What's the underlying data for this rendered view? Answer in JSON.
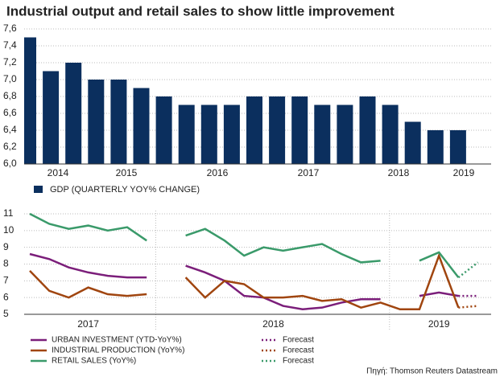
{
  "chart_data": [
    {
      "type": "bar",
      "title": "Industrial output and retail sales to show little improvement",
      "categories": [
        null,
        null,
        null,
        null,
        null,
        null,
        null,
        null,
        null,
        null,
        null,
        null,
        null,
        null,
        null,
        null,
        null,
        null,
        null,
        null
      ],
      "series": [
        {
          "name": "GDP (QUARTERLY YOY% CHANGE)",
          "color": "#0b2f5e",
          "values": [
            7.5,
            7.1,
            7.2,
            7.0,
            7.0,
            6.9,
            6.8,
            6.7,
            6.7,
            6.7,
            6.8,
            6.8,
            6.8,
            6.7,
            6.7,
            6.8,
            6.7,
            6.5,
            6.4,
            6.4
          ]
        }
      ],
      "year_labels": [
        "2014",
        "2015",
        "2016",
        "2017",
        "2018",
        "2019"
      ],
      "ylim": [
        6.0,
        7.6
      ],
      "yticks": [
        {
          "value": 6.0,
          "label": "6,0"
        },
        {
          "value": 6.2,
          "label": "6,2"
        },
        {
          "value": 6.4,
          "label": "6,4"
        },
        {
          "value": 6.6,
          "label": "6,6"
        },
        {
          "value": 6.8,
          "label": "6,8"
        },
        {
          "value": 7.0,
          "label": "7,0"
        },
        {
          "value": 7.2,
          "label": "7,2"
        },
        {
          "value": 7.4,
          "label": "7,4"
        },
        {
          "value": 7.6,
          "label": "7,6"
        }
      ],
      "grid": true
    },
    {
      "type": "line",
      "categories": [
        null,
        null,
        null,
        null,
        null,
        null,
        null,
        null,
        null,
        null,
        null,
        null,
        null,
        null,
        null,
        null,
        null,
        null,
        null,
        null,
        null,
        null,
        null,
        null
      ],
      "year_labels": [
        "2017",
        "2018",
        "2019"
      ],
      "series": [
        {
          "name": "URBAN INVESTMENT (YTD-YoY%)",
          "color": "#7b1e7a",
          "dashed": false,
          "values": [
            8.6,
            8.3,
            7.8,
            7.5,
            7.3,
            7.2,
            7.2,
            null,
            7.9,
            7.5,
            7.0,
            6.1,
            6.0,
            5.5,
            5.3,
            5.4,
            5.7,
            5.9,
            5.9,
            null,
            6.1,
            6.3,
            6.1,
            null
          ]
        },
        {
          "name": "INDUSTRIAL PRODUCTION (YoY%)",
          "color": "#a0450f",
          "dashed": false,
          "values": [
            7.6,
            6.4,
            6.0,
            6.6,
            6.2,
            6.1,
            6.2,
            null,
            7.2,
            6.0,
            7.0,
            6.8,
            6.0,
            6.0,
            6.1,
            5.8,
            5.9,
            5.4,
            5.7,
            5.3,
            5.3,
            8.5,
            5.4,
            null
          ]
        },
        {
          "name": "RETAIL SALES (YoY%)",
          "color": "#3a9a6a",
          "dashed": false,
          "values": [
            11.0,
            10.4,
            10.1,
            10.3,
            10.0,
            10.2,
            9.4,
            null,
            9.7,
            10.1,
            9.4,
            8.5,
            9.0,
            8.8,
            9.0,
            9.2,
            8.6,
            8.1,
            8.2,
            null,
            8.2,
            8.7,
            7.2,
            null
          ]
        },
        {
          "name": "Forecast",
          "color": "#7b1e7a",
          "dashed": true,
          "values": [
            null,
            null,
            null,
            null,
            null,
            null,
            null,
            null,
            null,
            null,
            null,
            null,
            null,
            null,
            null,
            null,
            null,
            null,
            null,
            null,
            null,
            null,
            6.1,
            6.1
          ]
        },
        {
          "name": "Forecast",
          "color": "#a0450f",
          "dashed": true,
          "values": [
            null,
            null,
            null,
            null,
            null,
            null,
            null,
            null,
            null,
            null,
            null,
            null,
            null,
            null,
            null,
            null,
            null,
            null,
            null,
            null,
            null,
            null,
            5.4,
            5.5
          ]
        },
        {
          "name": "Forecast",
          "color": "#3a9a6a",
          "dashed": true,
          "values": [
            null,
            null,
            null,
            null,
            null,
            null,
            null,
            null,
            null,
            null,
            null,
            null,
            null,
            null,
            null,
            null,
            null,
            null,
            null,
            null,
            null,
            null,
            7.2,
            8.1
          ]
        }
      ],
      "ylim": [
        5,
        11
      ],
      "yticks": [
        5,
        6,
        7,
        8,
        9,
        10,
        11
      ],
      "grid": true,
      "source": "Πηγή: Thomson Reuters Datastream"
    }
  ]
}
